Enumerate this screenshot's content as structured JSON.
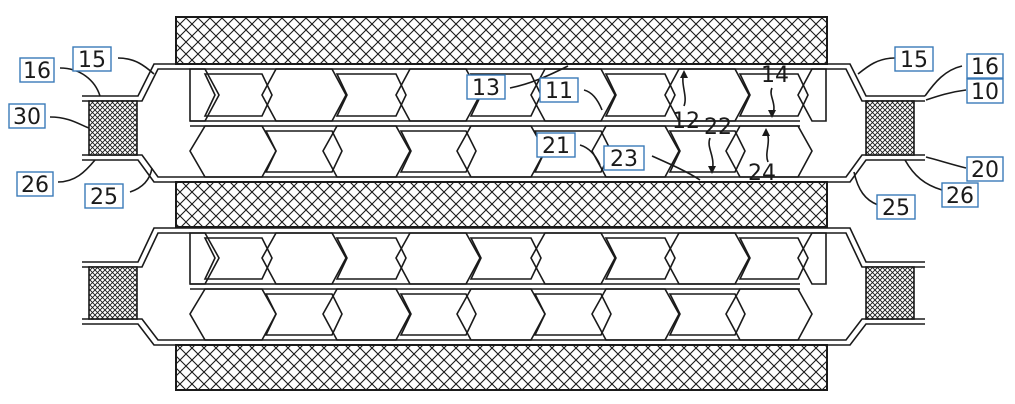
{
  "diagram": {
    "labels": {
      "l10": "10",
      "l11": "11",
      "l12": "12",
      "l13": "13",
      "l14": "14",
      "l15_left": "15",
      "l15_right": "15",
      "l16_left": "16",
      "l16_right": "16",
      "l20": "20",
      "l21": "21",
      "l22": "22",
      "l23": "23",
      "l24": "24",
      "l25_left": "25",
      "l25_right": "25",
      "l26_left": "26",
      "l26_right": "26",
      "l30": "30"
    }
  }
}
